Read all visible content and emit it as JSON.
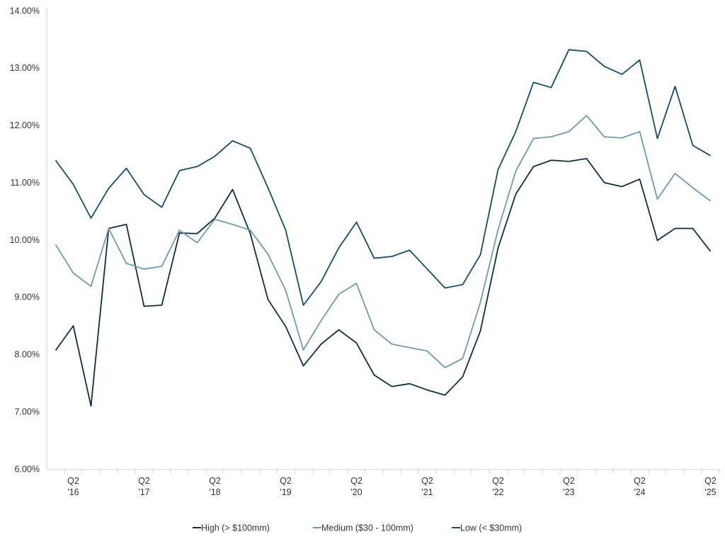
{
  "chart_data": {
    "type": "line",
    "categories": [
      null,
      "Q2 '16",
      null,
      null,
      null,
      "Q2 '17",
      null,
      null,
      null,
      "Q2 '18",
      null,
      null,
      null,
      "Q2 '19",
      null,
      null,
      null,
      "Q2 '20",
      null,
      null,
      null,
      "Q2 '21",
      null,
      null,
      null,
      "Q2 '22",
      null,
      null,
      null,
      "Q2 '23",
      null,
      null,
      null,
      "Q2 '24",
      null,
      null,
      null,
      "Q2 '25"
    ],
    "series": [
      {
        "name": "High (> $100mm)",
        "color": "#0b2e40",
        "values": [
          8.08,
          8.51,
          7.11,
          10.21,
          10.28,
          8.85,
          8.87,
          10.13,
          10.12,
          10.39,
          10.89,
          10.12,
          8.97,
          8.5,
          7.81,
          8.19,
          8.44,
          8.21,
          7.65,
          7.45,
          7.5,
          7.39,
          7.3,
          7.62,
          8.42,
          9.87,
          10.81,
          11.29,
          11.4,
          11.38,
          11.43,
          11.01,
          10.94,
          11.07,
          10.0,
          10.21,
          10.21,
          9.81
        ]
      },
      {
        "name": "Medium ($30 - 100mm)",
        "color": "#6d9bb0",
        "values": [
          9.93,
          9.43,
          9.2,
          10.21,
          9.6,
          9.5,
          9.55,
          10.18,
          9.96,
          10.37,
          10.28,
          10.18,
          9.76,
          9.13,
          8.09,
          8.6,
          9.06,
          9.25,
          8.44,
          8.19,
          8.13,
          8.07,
          7.78,
          7.94,
          8.92,
          10.19,
          11.21,
          11.78,
          11.81,
          11.9,
          12.18,
          11.81,
          11.79,
          11.9,
          10.72,
          11.17,
          10.92,
          10.69
        ]
      },
      {
        "name": "Low (< $30mm)",
        "color": "#104e6a",
        "values": [
          11.4,
          10.98,
          10.39,
          10.91,
          11.26,
          10.8,
          10.58,
          11.22,
          11.29,
          11.47,
          11.74,
          11.61,
          10.92,
          10.18,
          8.87,
          9.28,
          9.87,
          10.32,
          9.69,
          9.72,
          9.83,
          9.5,
          9.17,
          9.23,
          9.75,
          11.24,
          11.9,
          12.76,
          12.67,
          13.33,
          13.3,
          13.04,
          12.9,
          13.15,
          11.78,
          12.69,
          11.66,
          11.48
        ]
      }
    ],
    "ylim": [
      6,
      14
    ],
    "yticks": [
      {
        "value": 6,
        "label": "6.00%"
      },
      {
        "value": 7,
        "label": "7.00%"
      },
      {
        "value": 8,
        "label": "8.00%"
      },
      {
        "value": 9,
        "label": "9.00%"
      },
      {
        "value": 10,
        "label": "10.00%"
      },
      {
        "value": 11,
        "label": "11.00%"
      },
      {
        "value": 12,
        "label": "12.00%"
      },
      {
        "value": 13,
        "label": "13.00%"
      },
      {
        "value": 14,
        "label": "14.00%"
      }
    ],
    "grid": false,
    "legend": "bottom"
  }
}
